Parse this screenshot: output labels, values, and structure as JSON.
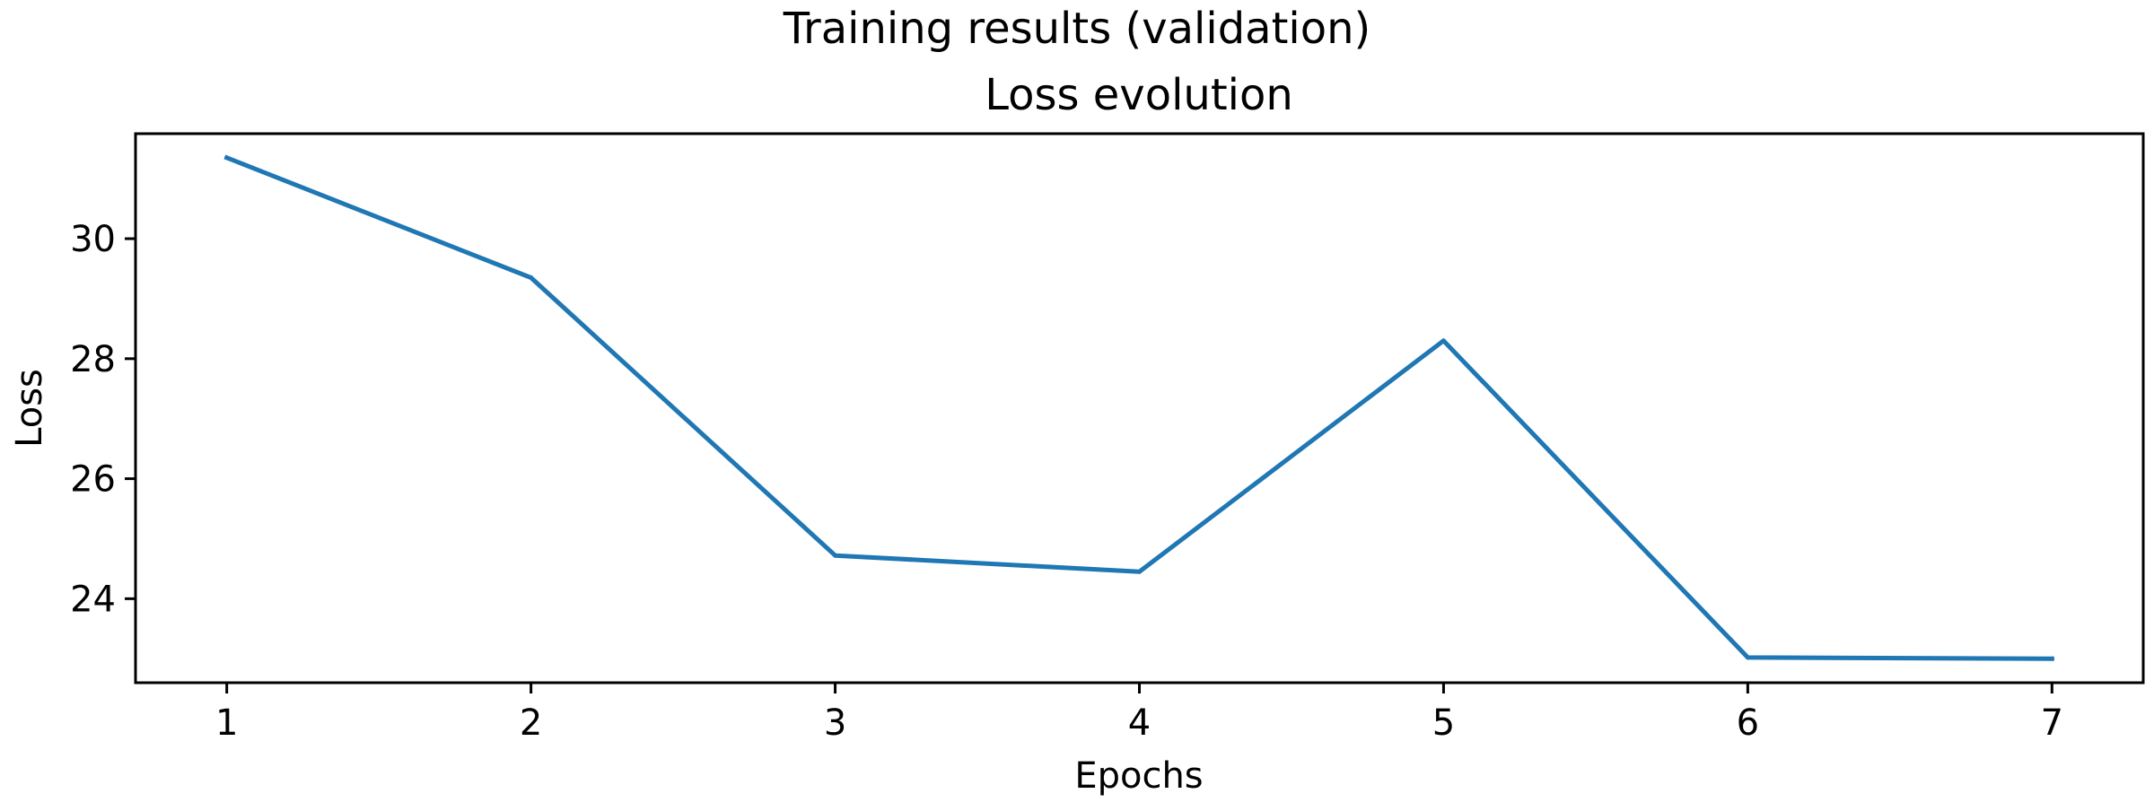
{
  "chart_data": {
    "type": "line",
    "suptitle": "Training results (validation)",
    "title": "Loss evolution",
    "xlabel": "Epochs",
    "ylabel": "Loss",
    "x": [
      1,
      2,
      3,
      4,
      5,
      6,
      7
    ],
    "series": [
      {
        "name": "",
        "color": "#1f77b4",
        "values": [
          31.35,
          29.35,
          24.72,
          24.45,
          28.3,
          23.02,
          23.0
        ]
      }
    ],
    "xlim": [
      0.7,
      7.3
    ],
    "ylim": [
      22.6,
      31.75
    ],
    "xticks": [
      1,
      2,
      3,
      4,
      5,
      6,
      7
    ],
    "yticks": [
      24,
      26,
      28,
      30
    ],
    "grid": false,
    "legend": "none"
  }
}
